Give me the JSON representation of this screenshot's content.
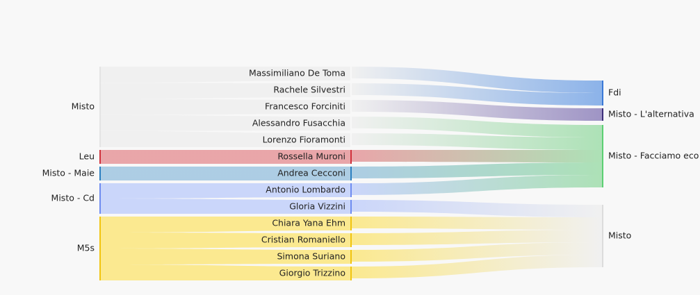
{
  "chart_data": {
    "type": "sankey",
    "left_nodes": [
      {
        "id": "L_misto",
        "label": "Misto",
        "color": "#f0f0f0"
      },
      {
        "id": "L_leu",
        "label": "Leu",
        "color": "#e8a1a5"
      },
      {
        "id": "L_maie",
        "label": "Misto - Maie",
        "color": "#a9cbe3"
      },
      {
        "id": "L_cd",
        "label": "Misto - Cd",
        "color": "#c8d4fa"
      },
      {
        "id": "L_m5s",
        "label": "M5s",
        "color": "#fbe88a"
      }
    ],
    "middle_nodes": [
      {
        "id": "P1",
        "label": "Massimiliano De Toma",
        "color": "#f0f0f0"
      },
      {
        "id": "P2",
        "label": "Rachele Silvestri",
        "color": "#f0f0f0"
      },
      {
        "id": "P3",
        "label": "Francesco Forciniti",
        "color": "#f0f0f0"
      },
      {
        "id": "P4",
        "label": "Alessandro Fusacchia",
        "color": "#f0f0f0"
      },
      {
        "id": "P5",
        "label": "Lorenzo Fioramonti",
        "color": "#f0f0f0"
      },
      {
        "id": "P6",
        "label": "Rossella Muroni",
        "color": "#e8a1a5"
      },
      {
        "id": "P7",
        "label": "Andrea Cecconi",
        "color": "#a9cbe3"
      },
      {
        "id": "P8",
        "label": "Antonio Lombardo",
        "color": "#c8d4fa"
      },
      {
        "id": "P9",
        "label": "Gloria Vizzini",
        "color": "#c8d4fa"
      },
      {
        "id": "P10",
        "label": "Chiara Yana Ehm",
        "color": "#fbe88a"
      },
      {
        "id": "P11",
        "label": "Cristian Romaniello",
        "color": "#fbe88a"
      },
      {
        "id": "P12",
        "label": "Simona Suriano",
        "color": "#fbe88a"
      },
      {
        "id": "P13",
        "label": "Giorgio Trizzino",
        "color": "#fbe88a"
      }
    ],
    "right_nodes": [
      {
        "id": "R_fdi",
        "label": "Fdi",
        "color": "#86afe8"
      },
      {
        "id": "R_alt",
        "label": "Misto - L'alternativa",
        "color": "#9a8fc2"
      },
      {
        "id": "R_eco",
        "label": "Misto - Facciamo eco",
        "color": "#a9e0b3"
      },
      {
        "id": "R_misto",
        "label": "Misto",
        "color": "#f0f0f0"
      }
    ],
    "links": [
      {
        "source": "L_misto",
        "target": "P1",
        "value": 1
      },
      {
        "source": "L_misto",
        "target": "P2",
        "value": 1
      },
      {
        "source": "L_misto",
        "target": "P3",
        "value": 1
      },
      {
        "source": "L_misto",
        "target": "P4",
        "value": 1
      },
      {
        "source": "L_misto",
        "target": "P5",
        "value": 1
      },
      {
        "source": "L_leu",
        "target": "P6",
        "value": 1
      },
      {
        "source": "L_maie",
        "target": "P7",
        "value": 1
      },
      {
        "source": "L_cd",
        "target": "P8",
        "value": 1
      },
      {
        "source": "L_cd",
        "target": "P9",
        "value": 1
      },
      {
        "source": "L_m5s",
        "target": "P10",
        "value": 1
      },
      {
        "source": "L_m5s",
        "target": "P11",
        "value": 1
      },
      {
        "source": "L_m5s",
        "target": "P12",
        "value": 1
      },
      {
        "source": "L_m5s",
        "target": "P13",
        "value": 1
      },
      {
        "source": "P1",
        "target": "R_fdi",
        "value": 1
      },
      {
        "source": "P2",
        "target": "R_fdi",
        "value": 1
      },
      {
        "source": "P3",
        "target": "R_alt",
        "value": 1
      },
      {
        "source": "P4",
        "target": "R_eco",
        "value": 1
      },
      {
        "source": "P5",
        "target": "R_eco",
        "value": 1
      },
      {
        "source": "P6",
        "target": "R_eco",
        "value": 1
      },
      {
        "source": "P7",
        "target": "R_eco",
        "value": 1
      },
      {
        "source": "P8",
        "target": "R_eco",
        "value": 1
      },
      {
        "source": "P9",
        "target": "R_misto",
        "value": 1
      },
      {
        "source": "P10",
        "target": "R_misto",
        "value": 1
      },
      {
        "source": "P11",
        "target": "R_misto",
        "value": 1
      },
      {
        "source": "P12",
        "target": "R_misto",
        "value": 1
      },
      {
        "source": "P13",
        "target": "R_misto",
        "value": 1
      }
    ],
    "bar_colors": {
      "R_fdi": "#3a78d6",
      "R_alt": "#3d2f7a",
      "R_eco": "#5ccf72",
      "R_misto": "#dcdcdc",
      "L_misto": "#e4e4e4",
      "L_leu": "#d0313c",
      "L_maie": "#2b7fc0",
      "L_cd": "#6f8cf0",
      "L_m5s": "#f1c40f",
      "P6": "#d0313c",
      "P7": "#2b7fc0",
      "P8": "#6f8cf0",
      "P9": "#6f8cf0",
      "P10": "#f1c40f",
      "P11": "#f1c40f",
      "P12": "#f1c40f",
      "P13": "#f1c40f"
    }
  }
}
